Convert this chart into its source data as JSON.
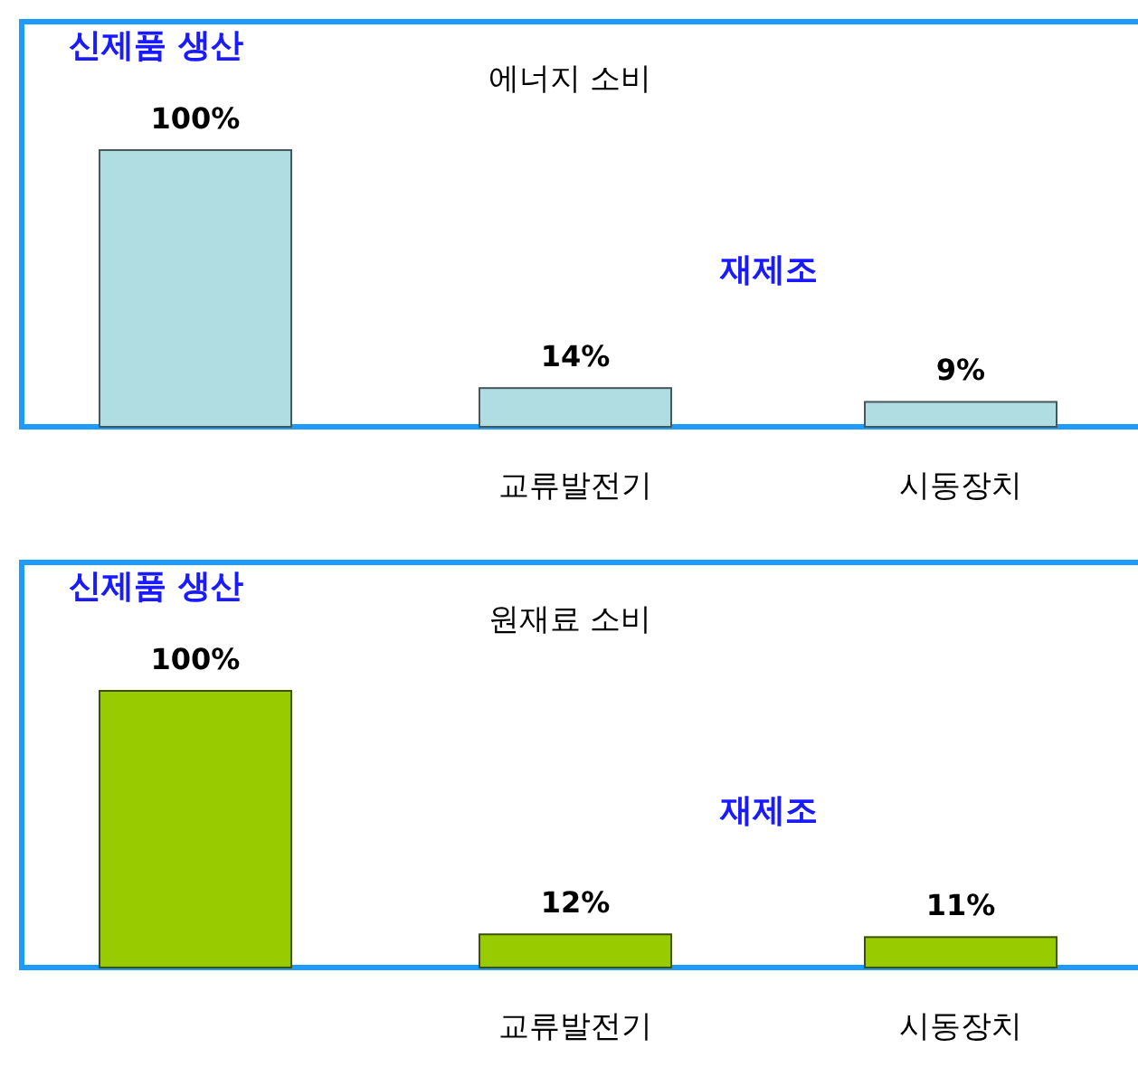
{
  "chart_data": [
    {
      "type": "bar",
      "title": "에너지 소비",
      "annotations": [
        "신제품 생산",
        "재제조"
      ],
      "categories": [
        null,
        "교류발전기",
        "시동장치"
      ],
      "values": [
        100,
        14,
        9
      ],
      "value_labels": [
        "100%",
        "14%",
        "9%"
      ],
      "color": "#b0dde2"
    },
    {
      "type": "bar",
      "title": "원재료 소비",
      "annotations": [
        "신제품 생산",
        "재제조"
      ],
      "categories": [
        null,
        "교류발전기",
        "시동장치"
      ],
      "values": [
        100,
        12,
        11
      ],
      "value_labels": [
        "100%",
        "12%",
        "11%"
      ],
      "color": "#99cc00"
    }
  ]
}
